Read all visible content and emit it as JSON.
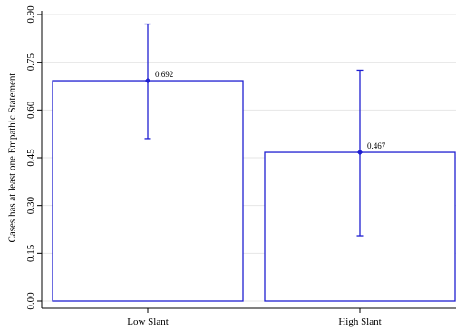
{
  "chart_data": {
    "type": "bar",
    "title": "",
    "xlabel": "",
    "ylabel": "Cases has at least one Empathic Statement",
    "categories": [
      "Low Slant",
      "High Slant"
    ],
    "values": [
      0.692,
      0.467
    ],
    "value_labels": [
      "0.692",
      "0.467"
    ],
    "ci_low": [
      0.51,
      0.205
    ],
    "ci_high": [
      0.87,
      0.725
    ],
    "ylim": [
      0,
      0.9
    ],
    "yticks": [
      0,
      0.15,
      0.3,
      0.45,
      0.6,
      0.75,
      0.9
    ],
    "ytick_labels": [
      "0.00",
      "0.15",
      "0.30",
      "0.45",
      "0.60",
      "0.75",
      "0.90"
    ],
    "grid": true,
    "colors": {
      "bar_outline": "#1f1fd1",
      "bar_fill": "#ffffff",
      "grid": "#e6e6e6",
      "axis": "#000000"
    }
  }
}
